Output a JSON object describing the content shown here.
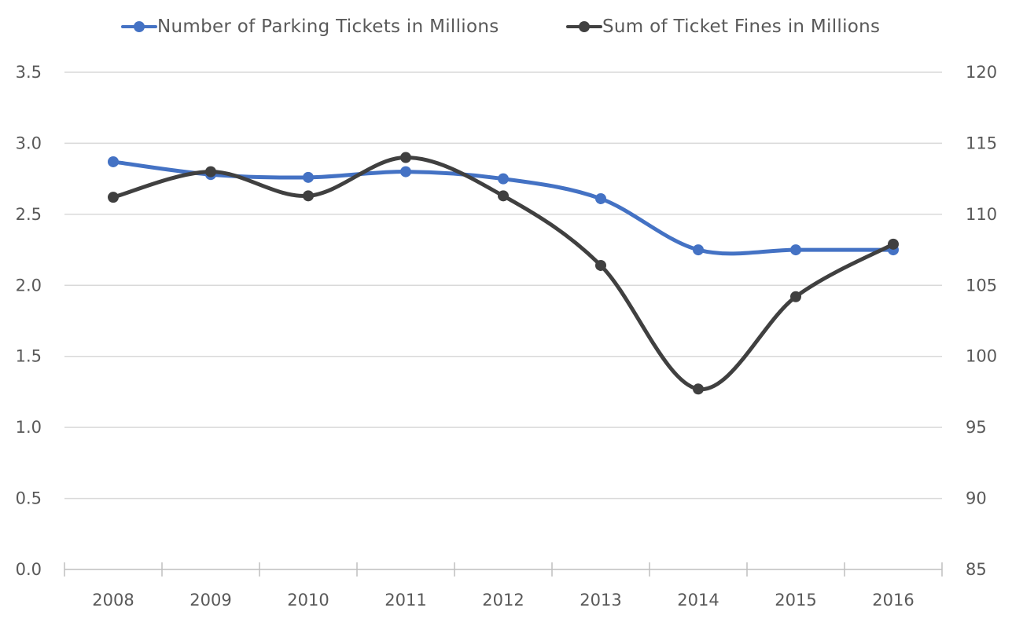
{
  "chart_data": {
    "type": "line",
    "categories": [
      "2008",
      "2009",
      "2010",
      "2011",
      "2012",
      "2013",
      "2014",
      "2015",
      "2016"
    ],
    "series": [
      {
        "name": "Number of Parking Tickets in Millions",
        "axis": "left",
        "color": "#4472C4",
        "values": [
          2.87,
          2.78,
          2.76,
          2.8,
          2.75,
          2.61,
          2.25,
          2.25,
          2.25
        ]
      },
      {
        "name": "Sum of Ticket Fines in Millions",
        "axis": "right",
        "color": "#404040",
        "values": [
          111.2,
          113.0,
          111.3,
          114.0,
          111.3,
          106.4,
          97.7,
          104.2,
          107.9
        ]
      }
    ],
    "y_left": {
      "range": [
        0,
        3.5
      ],
      "ticks": [
        "0.0",
        "0.5",
        "1.0",
        "1.5",
        "2.0",
        "2.5",
        "3.0",
        "3.5"
      ]
    },
    "y_right": {
      "range": [
        85,
        120
      ],
      "ticks": [
        "85",
        "90",
        "95",
        "100",
        "105",
        "110",
        "115",
        "120"
      ]
    },
    "grid": true,
    "legend_position": "top",
    "smooth": true
  }
}
